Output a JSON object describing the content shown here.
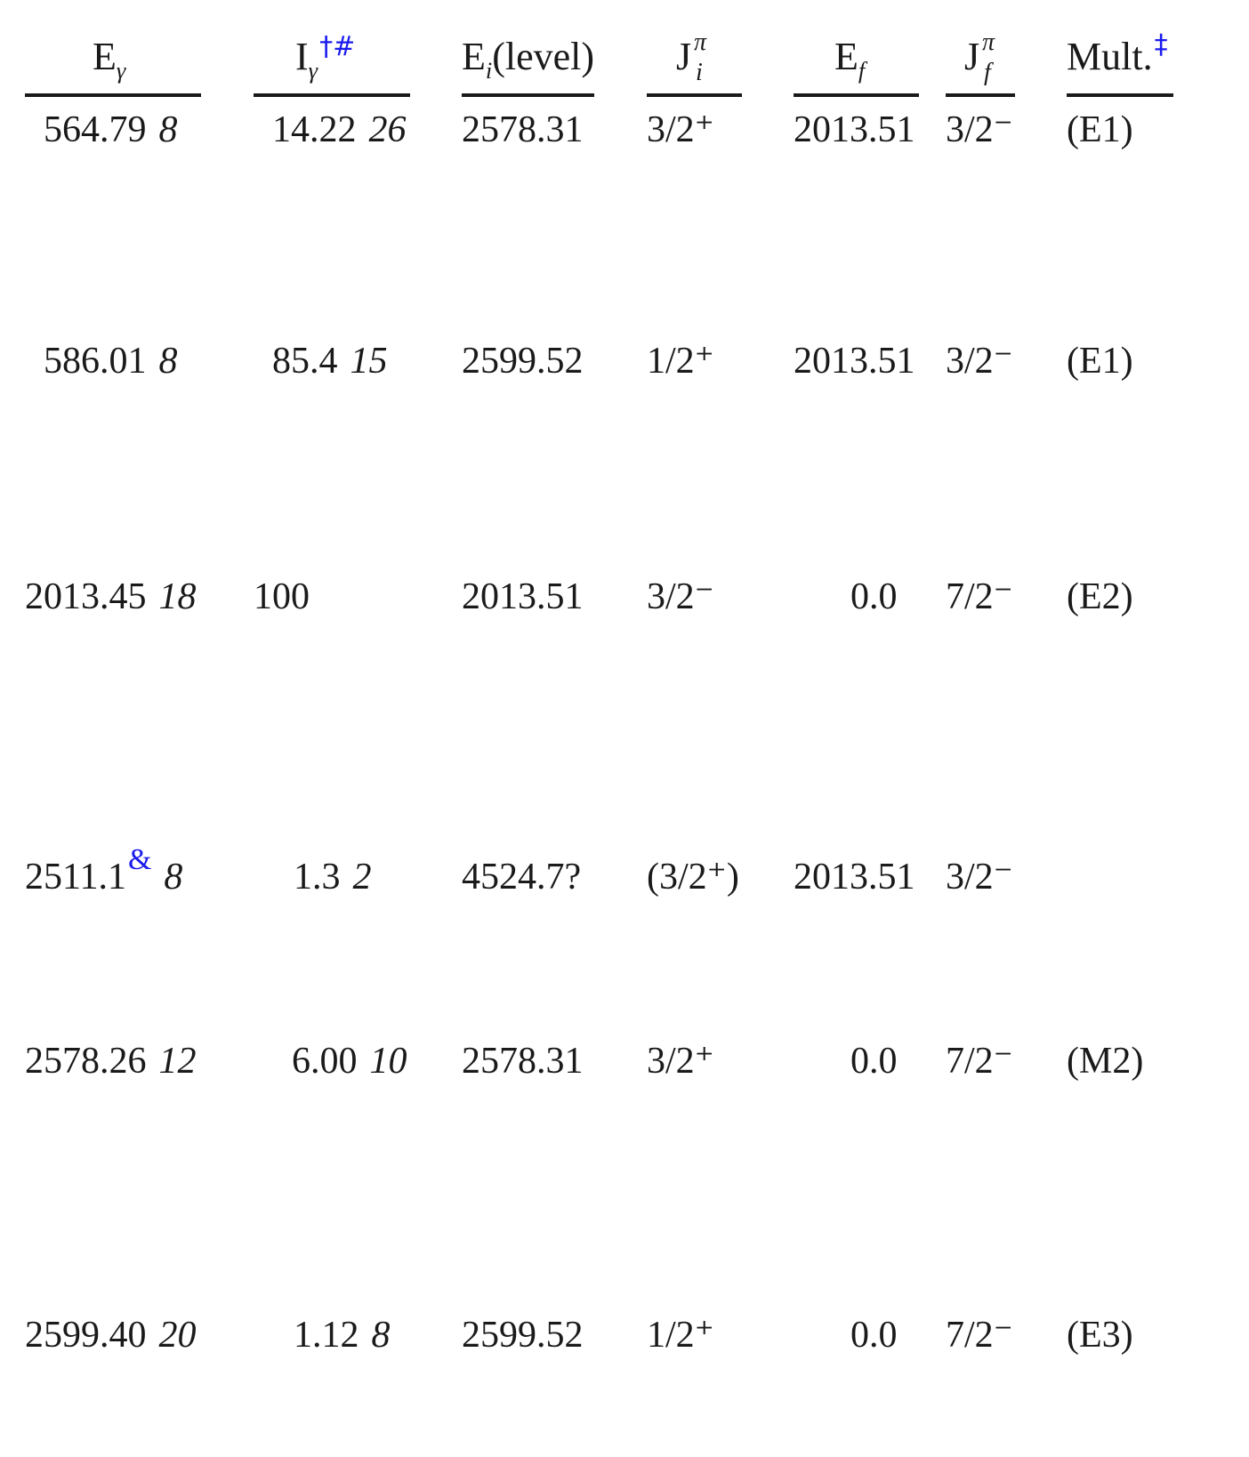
{
  "headers": {
    "e_gamma": "Eγ",
    "i_gamma": "Iγ",
    "i_gamma_fn": "†#",
    "e_i": "Ei(level)",
    "j_i": "Jπi",
    "e_f": "Ef",
    "j_f": "Jπf",
    "mult": "Mult.",
    "mult_fn": "‡"
  },
  "rows": [
    {
      "eg": "564.79",
      "eg_unc": "8",
      "eg_fn": "",
      "ig": "14.22",
      "ig_unc": "26",
      "ei": "2578.31",
      "ji": "3/2⁺",
      "ef": "2013.51",
      "jf": "3/2⁻",
      "mult": "(E1)"
    },
    {
      "eg": "586.01",
      "eg_unc": "8",
      "eg_fn": "",
      "ig": "85.4",
      "ig_unc": "15",
      "ei": "2599.52",
      "ji": "1/2⁺",
      "ef": "2013.51",
      "jf": "3/2⁻",
      "mult": "(E1)"
    },
    {
      "eg": "2013.45",
      "eg_unc": "18",
      "eg_fn": "",
      "ig": "100",
      "ig_unc": "",
      "ei": "2013.51",
      "ji": "3/2⁻",
      "ef": "0.0",
      "jf": "7/2⁻",
      "mult": "(E2)"
    },
    {
      "eg": "2511.1",
      "eg_unc": "8",
      "eg_fn": "&",
      "ig": "1.3",
      "ig_unc": "2",
      "ei": "4524.7?",
      "ji": "(3/2⁺)",
      "ef": "2013.51",
      "jf": "3/2⁻",
      "mult": ""
    },
    {
      "eg": "2578.26",
      "eg_unc": "12",
      "eg_fn": "",
      "ig": "6.00",
      "ig_unc": "10",
      "ei": "2578.31",
      "ji": "3/2⁺",
      "ef": "0.0",
      "jf": "7/2⁻",
      "mult": "(M2)"
    },
    {
      "eg": "2599.40",
      "eg_unc": "20",
      "eg_fn": "",
      "ig": "1.12",
      "ig_unc": "8",
      "ei": "2599.52",
      "ji": "1/2⁺",
      "ef": "0.0",
      "jf": "7/2⁻",
      "mult": "(E3)"
    }
  ]
}
